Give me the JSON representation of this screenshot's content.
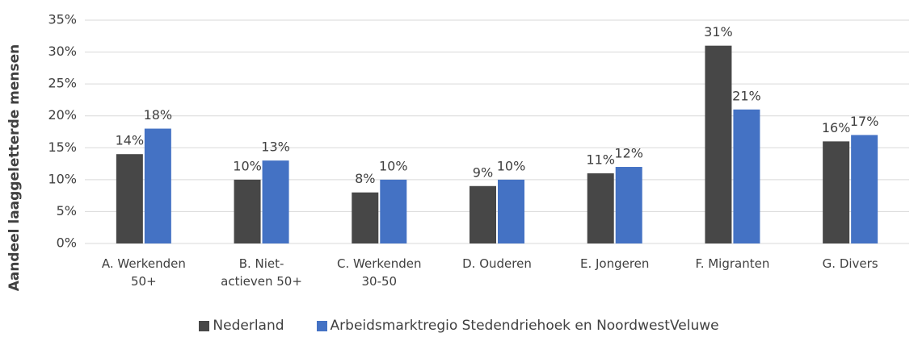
{
  "chart_data": {
    "type": "bar",
    "y_label": "Aandeel laaggeletterde mensen",
    "categories": [
      "A. Werkenden 50+",
      "B. Niet-actieven 50+",
      "C. Werkenden 30-50",
      "D. Ouderen",
      "E. Jongeren",
      "F. Migranten",
      "G. Divers"
    ],
    "series": [
      {
        "name": "Nederland",
        "color": "#474747",
        "values": [
          14,
          10,
          8,
          9,
          11,
          31,
          16
        ],
        "value_labels": [
          "14%",
          "10%",
          "8%",
          "9%",
          "11%",
          "31%",
          "16%"
        ]
      },
      {
        "name": "Arbeidsmarktregio Stedendriehoek en NoordwestVeluwe",
        "color": "#4472c4",
        "values": [
          18,
          13,
          10,
          10,
          12,
          21,
          17
        ],
        "value_labels": [
          "18%",
          "13%",
          "10%",
          "10%",
          "12%",
          "21%",
          "17%"
        ]
      }
    ],
    "ylim": [
      0,
      35
    ],
    "yticks": [
      {
        "value": 0,
        "label": "0%"
      },
      {
        "value": 5,
        "label": "5%"
      },
      {
        "value": 10,
        "label": "10%"
      },
      {
        "value": 15,
        "label": "15%"
      },
      {
        "value": 20,
        "label": "20%"
      },
      {
        "value": 25,
        "label": "25%"
      },
      {
        "value": 30,
        "label": "30%"
      },
      {
        "value": 35,
        "label": "35%"
      }
    ],
    "grid": true,
    "legend": "bottom"
  }
}
